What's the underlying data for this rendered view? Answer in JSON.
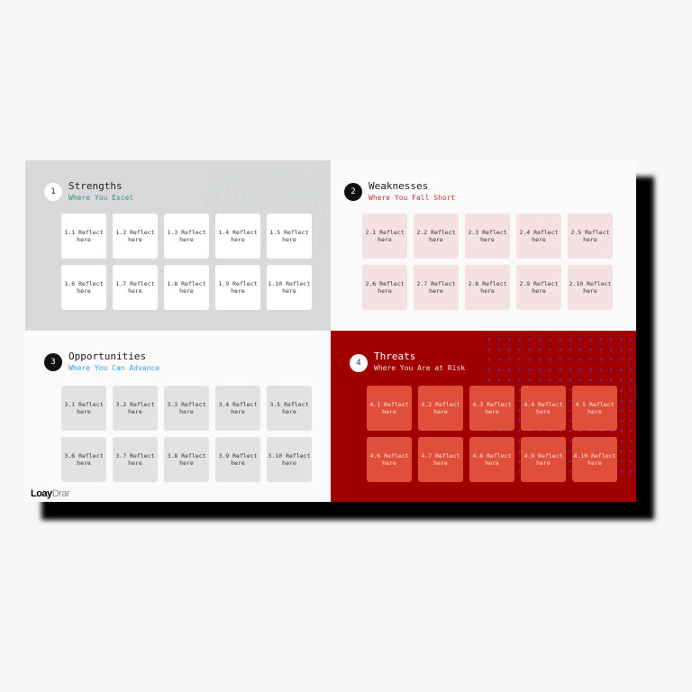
{
  "quadrants": [
    {
      "number": "1",
      "title": "Strengths",
      "subtitle": "Where You Excel",
      "cards": [
        "1.1 Reflect here",
        "1.2 Reflect here",
        "1.3 Reflect here",
        "1.4 Reflect here",
        "1.5 Reflect here",
        "1.6 Reflect here",
        "1.7 Reflect here",
        "1.8 Reflect here",
        "1.9 Reflect here",
        "1.10 Reflect here"
      ]
    },
    {
      "number": "2",
      "title": "Weaknesses",
      "subtitle": "Where You Fall Short",
      "cards": [
        "2.1 Reflect here",
        "2.2 Reflect here",
        "2.3 Reflect here",
        "2.4 Reflect here",
        "2.5 Reflect here",
        "2.6 Reflect here",
        "2.7 Reflect here",
        "2.8 Reflect here",
        "2.9 Reflect here",
        "2.10 Reflect here"
      ]
    },
    {
      "number": "3",
      "title": "Opportunities",
      "subtitle": "Where You Can Advance",
      "cards": [
        "3.1 Reflect here",
        "3.2 Reflect here",
        "3.3 Reflect here",
        "3.4 Reflect here",
        "3.5 Reflect here",
        "3.6 Reflect here",
        "3.7 Reflect here",
        "3.8 Reflect here",
        "3.9 Reflect here",
        "3.10 Reflect here"
      ]
    },
    {
      "number": "4",
      "title": "Threats",
      "subtitle": "Where You Are at Risk",
      "cards": [
        "4.1 Reflect here",
        "4.2 Reflect here",
        "4.3 Reflect here",
        "4.4 Reflect here",
        "4.5 Reflect here",
        "4.6 Reflect here",
        "4.7 Reflect here",
        "4.8 Reflect here",
        "4.9 Reflect here",
        "4.10 Reflect here"
      ]
    }
  ],
  "logo": {
    "first": "Loay",
    "last": "Drar"
  },
  "colors": {
    "strengths_accent": "#3a8f8f",
    "weaknesses_accent": "#c0392b",
    "opportunities_accent": "#3aa0e0",
    "threats_bg": "#a00000",
    "threats_card": "#df4f3a"
  }
}
